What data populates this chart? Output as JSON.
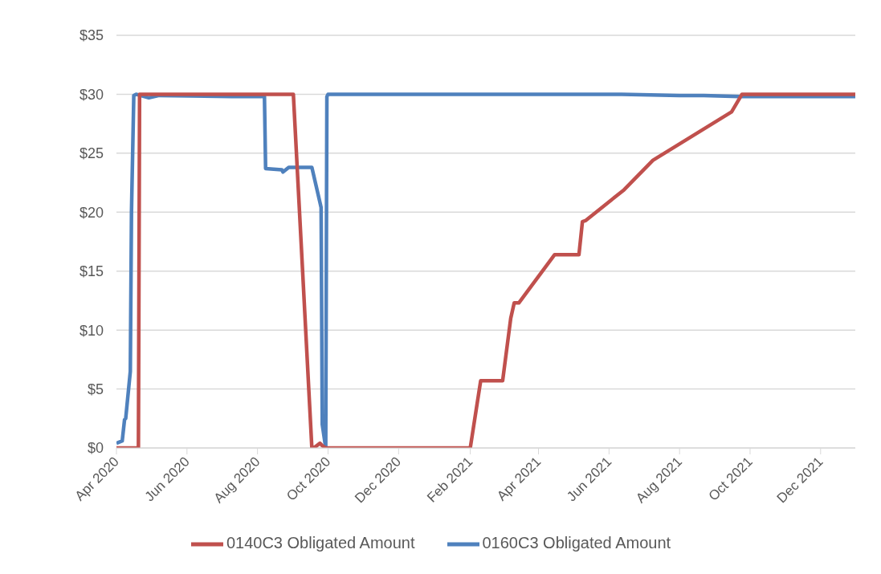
{
  "chart_data": {
    "type": "line",
    "xlim": [
      "2020-04-01",
      "2021-12-31"
    ],
    "xticks": [
      {
        "value": "2020-04-01",
        "label": "Apr 2020"
      },
      {
        "value": "2020-06-01",
        "label": "Jun 2020"
      },
      {
        "value": "2020-08-01",
        "label": "Aug 2020"
      },
      {
        "value": "2020-10-01",
        "label": "Oct 2020"
      },
      {
        "value": "2020-12-01",
        "label": "Dec 2020"
      },
      {
        "value": "2021-02-01",
        "label": "Feb 2021"
      },
      {
        "value": "2021-04-01",
        "label": "Apr 2021"
      },
      {
        "value": "2021-06-01",
        "label": "Jun 2021"
      },
      {
        "value": "2021-08-01",
        "label": "Aug 2021"
      },
      {
        "value": "2021-10-01",
        "label": "Oct 2021"
      },
      {
        "value": "2021-12-01",
        "label": "Dec 2021"
      }
    ],
    "ylim": [
      0,
      35
    ],
    "yticks": [
      {
        "value": 0,
        "label": "$0"
      },
      {
        "value": 5,
        "label": "$5"
      },
      {
        "value": 10,
        "label": "$10"
      },
      {
        "value": 15,
        "label": "$15"
      },
      {
        "value": 20,
        "label": "$20"
      },
      {
        "value": 25,
        "label": "$25"
      },
      {
        "value": 30,
        "label": "$30"
      },
      {
        "value": 35,
        "label": "$35"
      }
    ],
    "grid": "y",
    "legend": "bottom",
    "marker": "none",
    "line_style": "solid",
    "series": [
      {
        "name": "0160C3 Obligated Amount",
        "color": "#4f81bd",
        "x": [
          "2020-04-01",
          "2020-04-06",
          "2020-04-08",
          "2020-04-09",
          "2020-04-13",
          "2020-04-14",
          "2020-04-16",
          "2020-04-18",
          "2020-04-29",
          "2020-05-08",
          "2020-07-10",
          "2020-08-07",
          "2020-08-08",
          "2020-08-22",
          "2020-08-23",
          "2020-08-28",
          "2020-09-17",
          "2020-09-25",
          "2020-09-26",
          "2020-09-29",
          "2020-09-30",
          "2020-10-01",
          "2021-06-12",
          "2021-08-01",
          "2021-08-22",
          "2021-09-22",
          "2021-12-31"
        ],
        "values": [
          0.4,
          0.6,
          2.4,
          2.5,
          6.5,
          20,
          29.9,
          30,
          29.7,
          29.9,
          29.8,
          29.8,
          23.7,
          23.6,
          23.4,
          23.8,
          23.8,
          20.4,
          2,
          0,
          29.8,
          30,
          30,
          29.9,
          29.9,
          29.8,
          29.8
        ]
      },
      {
        "name": "0140C3 Obligated Amount",
        "color": "#c0504d",
        "x": [
          "2020-04-01",
          "2020-04-20",
          "2020-04-21",
          "2020-09-01",
          "2020-09-17",
          "2020-09-20",
          "2020-09-24",
          "2020-09-26",
          "2020-09-29",
          "2021-02-01",
          "2021-02-10",
          "2021-03-01",
          "2021-03-08",
          "2021-03-11",
          "2021-03-15",
          "2021-04-15",
          "2021-05-06",
          "2021-05-09",
          "2021-05-12",
          "2021-06-14",
          "2021-07-09",
          "2021-09-15",
          "2021-09-24",
          "2021-12-31"
        ],
        "values": [
          0,
          0,
          30,
          30,
          0,
          0.1,
          0.4,
          0.2,
          0,
          0,
          5.7,
          5.7,
          11,
          12.3,
          12.3,
          16.4,
          16.4,
          19.2,
          19.3,
          21.9,
          24.4,
          28.5,
          30,
          30
        ]
      }
    ]
  }
}
